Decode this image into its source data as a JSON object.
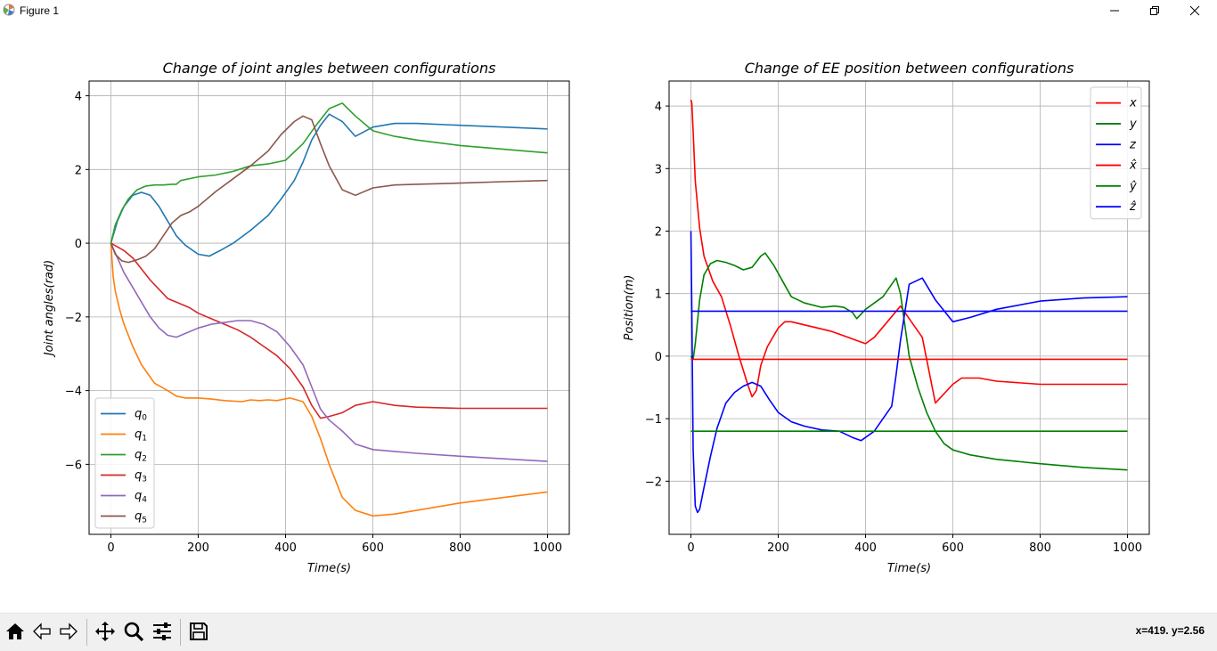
{
  "window": {
    "title": "Figure 1",
    "minimize_icon": "minimize-icon",
    "maximize_icon": "restore-icon",
    "close_icon": "close-icon"
  },
  "toolbar": {
    "buttons": [
      {
        "name": "home-button",
        "icon": "home-icon"
      },
      {
        "name": "back-button",
        "icon": "arrow-left-icon"
      },
      {
        "name": "forward-button",
        "icon": "arrow-right-icon"
      },
      {
        "name": "pan-button",
        "icon": "move-icon"
      },
      {
        "name": "zoom-button",
        "icon": "magnifier-icon"
      },
      {
        "name": "configure-subplots-button",
        "icon": "sliders-icon"
      },
      {
        "name": "save-button",
        "icon": "floppy-icon"
      }
    ],
    "coords": "x=419. y=2.56"
  },
  "chart_data": [
    {
      "type": "line",
      "title": "Change of joint angles between configurations",
      "xlabel": "Time(s)",
      "ylabel": "Joint angles(rad)",
      "xlim": [
        -50,
        1050
      ],
      "ylim": [
        -7.9,
        4.4
      ],
      "xticks": [
        0,
        200,
        400,
        600,
        800,
        1000
      ],
      "yticks": [
        -6,
        -4,
        -2,
        0,
        2,
        4
      ],
      "grid": true,
      "legend": "lower-left",
      "series": [
        {
          "name": "q0",
          "label_base": "q",
          "label_sub": "0",
          "color": "#1f77b4",
          "x": [
            0,
            15,
            30,
            50,
            70,
            90,
            110,
            130,
            150,
            170,
            200,
            225,
            250,
            280,
            320,
            360,
            390,
            420,
            440,
            460,
            480,
            500,
            530,
            560,
            600,
            650,
            700,
            800,
            900,
            1000
          ],
          "y": [
            0,
            0.6,
            1.0,
            1.3,
            1.38,
            1.3,
            1.0,
            0.6,
            0.2,
            -0.05,
            -0.3,
            -0.35,
            -0.2,
            0.0,
            0.35,
            0.75,
            1.2,
            1.7,
            2.2,
            2.8,
            3.2,
            3.5,
            3.3,
            2.9,
            3.15,
            3.25,
            3.25,
            3.2,
            3.15,
            3.1
          ]
        },
        {
          "name": "q1",
          "label_base": "q",
          "label_sub": "1",
          "color": "#ff7f0e",
          "x": [
            0,
            5,
            10,
            20,
            30,
            50,
            70,
            100,
            130,
            150,
            170,
            200,
            230,
            260,
            300,
            320,
            340,
            360,
            380,
            410,
            440,
            460,
            480,
            500,
            530,
            560,
            600,
            650,
            700,
            800,
            900,
            1000
          ],
          "y": [
            0,
            -0.9,
            -1.3,
            -1.8,
            -2.2,
            -2.8,
            -3.3,
            -3.8,
            -4.0,
            -4.15,
            -4.2,
            -4.2,
            -4.23,
            -4.27,
            -4.3,
            -4.25,
            -4.27,
            -4.25,
            -4.27,
            -4.2,
            -4.3,
            -4.7,
            -5.3,
            -6.0,
            -6.9,
            -7.25,
            -7.4,
            -7.35,
            -7.25,
            -7.05,
            -6.9,
            -6.75
          ]
        },
        {
          "name": "q2",
          "label_base": "q",
          "label_sub": "2",
          "color": "#2ca02c",
          "x": [
            0,
            10,
            25,
            40,
            60,
            80,
            100,
            120,
            140,
            150,
            160,
            200,
            240,
            280,
            320,
            360,
            400,
            440,
            470,
            500,
            530,
            560,
            600,
            650,
            700,
            800,
            900,
            1000
          ],
          "y": [
            0,
            0.5,
            0.9,
            1.2,
            1.45,
            1.55,
            1.58,
            1.58,
            1.6,
            1.6,
            1.7,
            1.8,
            1.85,
            1.95,
            2.1,
            2.15,
            2.25,
            2.7,
            3.2,
            3.65,
            3.8,
            3.45,
            3.05,
            2.9,
            2.8,
            2.65,
            2.55,
            2.45
          ]
        },
        {
          "name": "q3",
          "label_base": "q",
          "label_sub": "3",
          "color": "#d62728",
          "x": [
            0,
            15,
            30,
            50,
            70,
            90,
            110,
            130,
            150,
            180,
            200,
            230,
            260,
            290,
            320,
            350,
            380,
            410,
            440,
            460,
            480,
            500,
            530,
            560,
            600,
            650,
            700,
            800,
            900,
            1000
          ],
          "y": [
            0,
            -0.1,
            -0.2,
            -0.4,
            -0.7,
            -1.0,
            -1.25,
            -1.5,
            -1.6,
            -1.75,
            -1.9,
            -2.05,
            -2.2,
            -2.35,
            -2.55,
            -2.8,
            -3.05,
            -3.4,
            -3.9,
            -4.4,
            -4.75,
            -4.7,
            -4.6,
            -4.4,
            -4.3,
            -4.4,
            -4.45,
            -4.48,
            -4.48,
            -4.48
          ]
        },
        {
          "name": "q4",
          "label_base": "q",
          "label_sub": "4",
          "color": "#9467bd",
          "x": [
            0,
            15,
            30,
            50,
            70,
            90,
            110,
            130,
            150,
            170,
            200,
            230,
            260,
            290,
            320,
            350,
            380,
            410,
            440,
            460,
            480,
            500,
            530,
            560,
            600,
            650,
            700,
            800,
            900,
            1000
          ],
          "y": [
            0,
            -0.4,
            -0.8,
            -1.2,
            -1.6,
            -2.0,
            -2.3,
            -2.5,
            -2.55,
            -2.45,
            -2.3,
            -2.2,
            -2.15,
            -2.1,
            -2.1,
            -2.2,
            -2.4,
            -2.8,
            -3.3,
            -3.9,
            -4.5,
            -4.8,
            -5.1,
            -5.45,
            -5.6,
            -5.65,
            -5.7,
            -5.78,
            -5.85,
            -5.92
          ]
        },
        {
          "name": "q5",
          "label_base": "q",
          "label_sub": "5",
          "color": "#8c564b",
          "x": [
            0,
            10,
            25,
            40,
            60,
            80,
            100,
            120,
            140,
            160,
            180,
            200,
            240,
            280,
            320,
            360,
            390,
            420,
            440,
            460,
            480,
            500,
            530,
            560,
            600,
            650,
            700,
            800,
            900,
            1000
          ],
          "y": [
            0,
            -0.3,
            -0.48,
            -0.52,
            -0.45,
            -0.35,
            -0.15,
            0.2,
            0.55,
            0.75,
            0.85,
            1.0,
            1.4,
            1.75,
            2.1,
            2.5,
            2.95,
            3.3,
            3.45,
            3.35,
            2.7,
            2.1,
            1.45,
            1.3,
            1.5,
            1.58,
            1.6,
            1.63,
            1.67,
            1.7
          ]
        }
      ]
    },
    {
      "type": "line",
      "title": "Change of EE position between configurations",
      "xlabel": "Time(s)",
      "ylabel": "Position(m)",
      "xlim": [
        -50,
        1050
      ],
      "ylim": [
        -2.85,
        4.4
      ],
      "xticks": [
        0,
        200,
        400,
        600,
        800,
        1000
      ],
      "yticks": [
        -2,
        -1,
        0,
        1,
        2,
        3,
        4
      ],
      "grid": true,
      "legend": "top-right",
      "series": [
        {
          "name": "x",
          "label": "x",
          "color": "#ff0000",
          "x": [
            0,
            2,
            5,
            10,
            20,
            30,
            50,
            70,
            90,
            110,
            130,
            140,
            150,
            160,
            175,
            200,
            215,
            230,
            260,
            290,
            320,
            340,
            360,
            380,
            400,
            420,
            450,
            480,
            500,
            530,
            560,
            600,
            620,
            660,
            700,
            800,
            900,
            1000
          ],
          "y": [
            4.1,
            4.05,
            3.6,
            2.8,
            2.05,
            1.6,
            1.2,
            0.95,
            0.5,
            0.0,
            -0.45,
            -0.65,
            -0.55,
            -0.15,
            0.15,
            0.45,
            0.55,
            0.55,
            0.5,
            0.45,
            0.4,
            0.35,
            0.3,
            0.25,
            0.2,
            0.3,
            0.55,
            0.8,
            0.6,
            0.3,
            -0.75,
            -0.45,
            -0.35,
            -0.35,
            -0.4,
            -0.45,
            -0.45,
            -0.45
          ]
        },
        {
          "name": "y",
          "label": "y",
          "color": "#008000",
          "x": [
            0,
            5,
            10,
            20,
            30,
            45,
            60,
            80,
            100,
            120,
            140,
            160,
            170,
            190,
            210,
            230,
            260,
            300,
            330,
            350,
            370,
            380,
            400,
            440,
            470,
            480,
            500,
            520,
            540,
            560,
            580,
            600,
            640,
            700,
            800,
            900,
            1000
          ],
          "y": [
            0,
            -0.05,
            0.2,
            0.9,
            1.3,
            1.48,
            1.53,
            1.5,
            1.45,
            1.38,
            1.42,
            1.6,
            1.65,
            1.45,
            1.2,
            0.95,
            0.85,
            0.78,
            0.8,
            0.78,
            0.7,
            0.6,
            0.75,
            0.95,
            1.25,
            1.0,
            0.0,
            -0.5,
            -0.9,
            -1.2,
            -1.4,
            -1.5,
            -1.58,
            -1.65,
            -1.72,
            -1.78,
            -1.82
          ]
        },
        {
          "name": "z",
          "label": "z",
          "color": "#0000ff",
          "x": [
            0,
            2,
            5,
            10,
            15,
            20,
            30,
            45,
            60,
            80,
            100,
            120,
            140,
            160,
            180,
            200,
            230,
            260,
            300,
            340,
            370,
            390,
            420,
            440,
            460,
            470,
            480,
            500,
            530,
            560,
            600,
            640,
            700,
            800,
            900,
            1000
          ],
          "y": [
            2.0,
            0.8,
            -1.5,
            -2.4,
            -2.5,
            -2.45,
            -2.1,
            -1.6,
            -1.15,
            -0.75,
            -0.58,
            -0.48,
            -0.42,
            -0.48,
            -0.7,
            -0.9,
            -1.05,
            -1.12,
            -1.18,
            -1.2,
            -1.3,
            -1.35,
            -1.2,
            -1.0,
            -0.8,
            -0.3,
            0.25,
            1.15,
            1.25,
            0.9,
            0.55,
            0.62,
            0.75,
            0.88,
            0.93,
            0.95
          ]
        },
        {
          "name": "x-hat",
          "label": "x̂",
          "color": "#ff0000",
          "x": [
            0,
            1000
          ],
          "y": [
            -0.05,
            -0.05
          ]
        },
        {
          "name": "y-hat",
          "label": "ŷ",
          "color": "#008000",
          "x": [
            0,
            1000
          ],
          "y": [
            -1.2,
            -1.2
          ]
        },
        {
          "name": "z-hat",
          "label": "ẑ",
          "color": "#0000ff",
          "x": [
            0,
            1000
          ],
          "y": [
            0.72,
            0.72
          ]
        }
      ]
    }
  ]
}
